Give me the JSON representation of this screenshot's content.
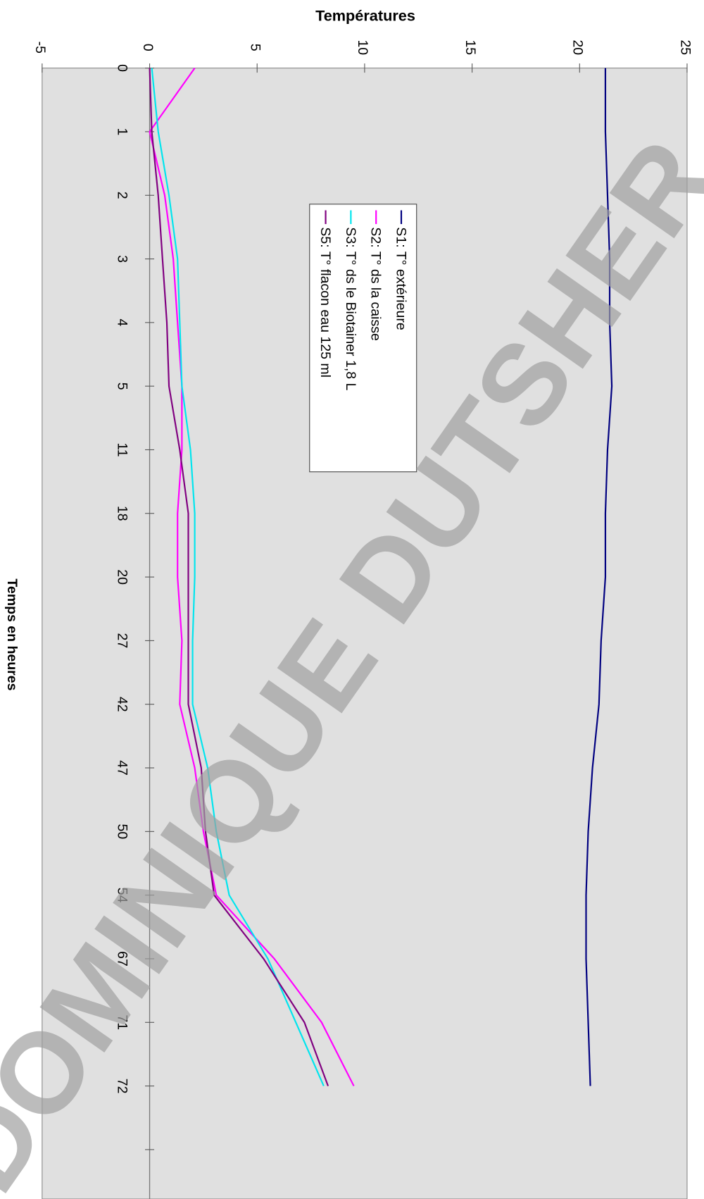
{
  "chart_data": {
    "type": "line",
    "title": "Températures",
    "x_label": "Temps en heures",
    "watermark": "DOMINIQUE DUTSHER",
    "categories": [
      "0",
      "1",
      "2",
      "3",
      "4",
      "5",
      "11",
      "18",
      "20",
      "27",
      "42",
      "47",
      "50",
      "54",
      "67",
      "71",
      "72",
      null
    ],
    "xlim": [
      -5,
      25
    ],
    "xticks": [
      -5,
      0,
      5,
      10,
      15,
      20,
      25
    ],
    "grid": false,
    "series": [
      {
        "name": "S1: T° extérieure",
        "color": "#000080",
        "values": [
          21.2,
          21.2,
          21.3,
          21.4,
          21.4,
          21.5,
          21.3,
          21.2,
          21.2,
          21.0,
          20.9,
          20.6,
          20.4,
          20.3,
          20.3,
          20.4,
          20.5,
          null
        ]
      },
      {
        "name": "S2: T° ds la caisse",
        "color": "#ff00ff",
        "values": [
          2.1,
          0.0,
          0.7,
          1.1,
          1.3,
          1.5,
          1.5,
          1.3,
          1.3,
          1.5,
          1.4,
          2.1,
          2.5,
          3.1,
          5.8,
          8.0,
          9.5,
          null
        ]
      },
      {
        "name": "S3: T° ds le Biotainer 1,8 L",
        "color": "#00e5ee",
        "values": [
          0.1,
          0.4,
          0.9,
          1.3,
          1.4,
          1.5,
          1.9,
          2.1,
          2.1,
          2.0,
          2.0,
          2.7,
          3.1,
          3.7,
          5.5,
          6.8,
          8.1,
          null
        ]
      },
      {
        "name": "S5: T° flacon eau 125 ml",
        "color": "#800080",
        "values": [
          0.0,
          0.1,
          0.4,
          0.6,
          0.8,
          0.9,
          1.4,
          1.8,
          1.8,
          1.8,
          1.8,
          2.4,
          2.6,
          3.0,
          5.3,
          7.2,
          8.3,
          null
        ]
      }
    ]
  }
}
